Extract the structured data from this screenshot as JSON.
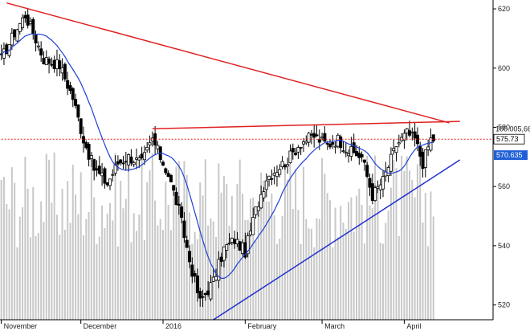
{
  "chart_data": {
    "type": "candlestick",
    "title": "",
    "xlabel": "",
    "ylabel": "",
    "ylim": [
      515,
      623
    ],
    "y_ticks": [
      "620",
      "600",
      "580",
      "560",
      "540",
      "520"
    ],
    "x_ticks": [
      {
        "label": "November",
        "day": 0
      },
      {
        "label": "December",
        "day": 30
      },
      {
        "label": "2016",
        "day": 61
      },
      {
        "label": "February",
        "day": 92
      },
      {
        "label": "March",
        "day": 121
      },
      {
        "label": "April",
        "day": 152
      }
    ],
    "last_price": "575.73",
    "ma_value": "570.635",
    "ref_label": "100.005,66",
    "grid": false,
    "colors": {
      "candle_up": "#ffffff",
      "candle_down": "#000000",
      "candle_outline": "#000000",
      "volume": "#c8c8c8",
      "moving_average": "#1f3fd6",
      "trendline_upper": "#e02020",
      "trendline_support": "#1f2fd0",
      "horizontal_level": "#e02020",
      "price_badge_bg": "#ffffff",
      "ma_badge_bg": "#1f5fd6"
    },
    "trendlines": [
      {
        "name": "upper-resistance",
        "points": [
          [
            2,
            622
          ],
          [
            169,
            581.5
          ]
        ],
        "style": "solid"
      },
      {
        "name": "top-resistance",
        "points": [
          [
            57,
            579.5
          ],
          [
            173,
            582
          ]
        ],
        "style": "solid"
      },
      {
        "name": "ascending-support",
        "points": [
          [
            80,
            515
          ],
          [
            173,
            569
          ]
        ],
        "style": "solid"
      },
      {
        "name": "horizontal-level",
        "points": [
          [
            0,
            576
          ],
          [
            186,
            576
          ]
        ],
        "style": "dotted"
      }
    ],
    "close_anchors": [
      [
        0,
        603
      ],
      [
        5,
        612
      ],
      [
        9,
        618
      ],
      [
        12,
        612
      ],
      [
        16,
        603
      ],
      [
        22,
        601
      ],
      [
        27,
        590
      ],
      [
        31,
        576
      ],
      [
        35,
        566
      ],
      [
        40,
        561
      ],
      [
        44,
        568
      ],
      [
        48,
        570
      ],
      [
        53,
        568
      ],
      [
        57,
        576
      ],
      [
        63,
        564
      ],
      [
        67,
        552
      ],
      [
        71,
        535
      ],
      [
        75,
        521
      ],
      [
        80,
        528
      ],
      [
        84,
        539
      ],
      [
        88,
        542
      ],
      [
        92,
        538
      ],
      [
        96,
        552
      ],
      [
        100,
        563
      ],
      [
        104,
        566
      ],
      [
        108,
        569
      ],
      [
        113,
        575
      ],
      [
        118,
        577
      ],
      [
        123,
        574
      ],
      [
        127,
        576
      ],
      [
        131,
        572
      ],
      [
        136,
        570
      ],
      [
        140,
        557
      ],
      [
        144,
        562
      ],
      [
        149,
        574
      ],
      [
        153,
        578
      ],
      [
        156,
        576
      ],
      [
        159,
        568
      ],
      [
        162,
        576
      ]
    ]
  }
}
